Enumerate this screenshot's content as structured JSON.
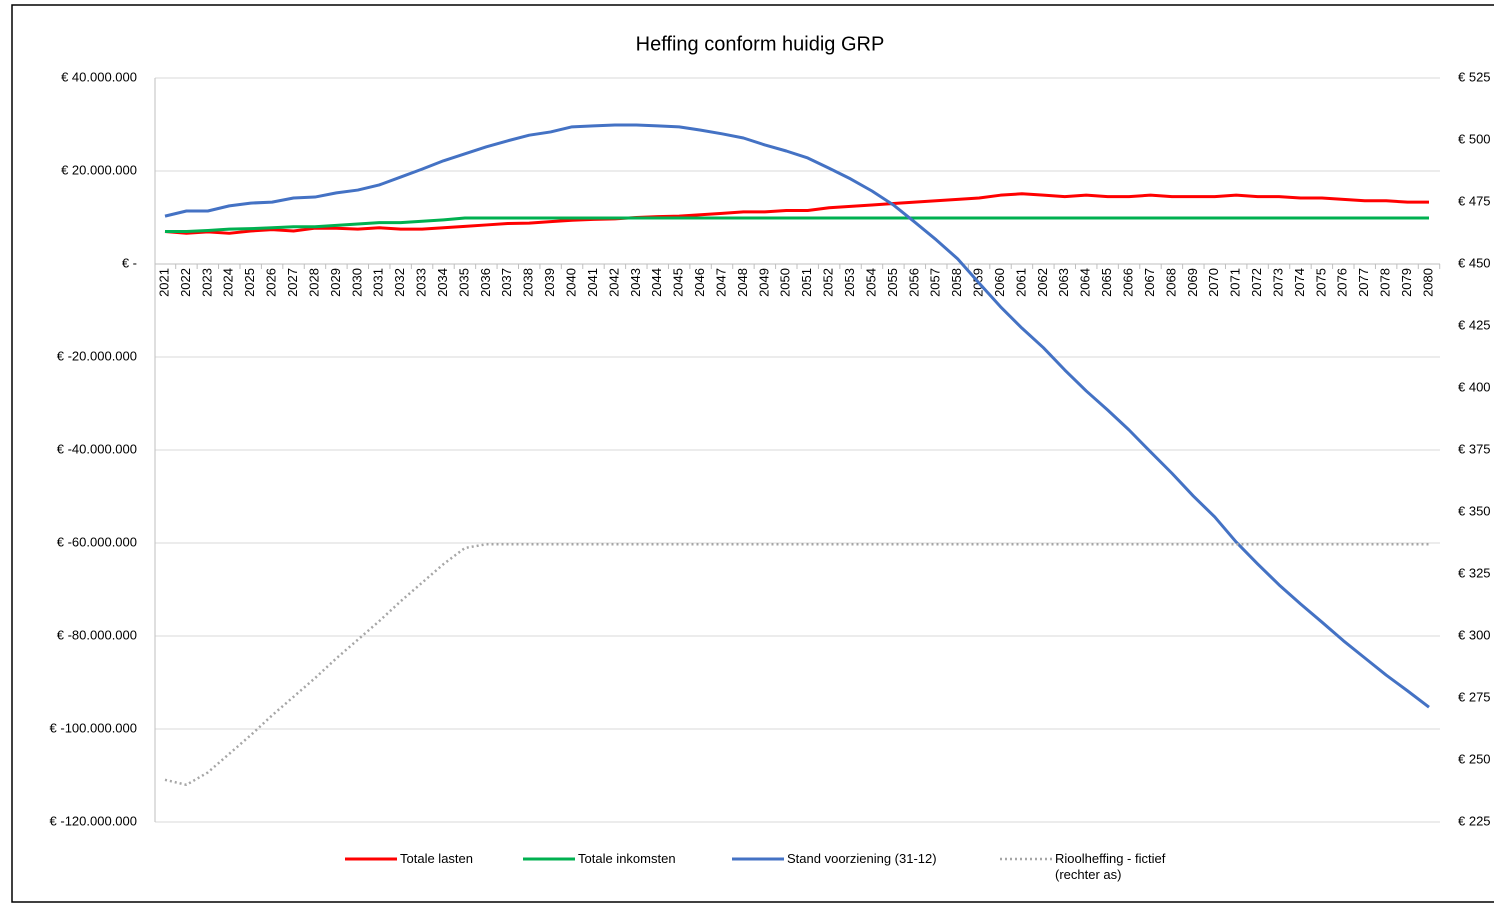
{
  "chart_data": {
    "type": "line",
    "title": "Heffing conform huidig GRP",
    "categories": [
      "2021",
      "2022",
      "2023",
      "2024",
      "2025",
      "2026",
      "2027",
      "2028",
      "2029",
      "2030",
      "2031",
      "2032",
      "2033",
      "2034",
      "2035",
      "2036",
      "2037",
      "2038",
      "2039",
      "2040",
      "2041",
      "2042",
      "2043",
      "2044",
      "2045",
      "2046",
      "2047",
      "2048",
      "2049",
      "2050",
      "2051",
      "2052",
      "2053",
      "2054",
      "2055",
      "2056",
      "2057",
      "2058",
      "2059",
      "2060",
      "2061",
      "2062",
      "2063",
      "2064",
      "2065",
      "2066",
      "2067",
      "2068",
      "2069",
      "2070",
      "2071",
      "2072",
      "2073",
      "2074",
      "2075",
      "2076",
      "2077",
      "2078",
      "2079",
      "2080"
    ],
    "ylim": [
      -120000000,
      40000000
    ],
    "yticks": [
      {
        "value": -120000000,
        "label": "€ -120.000.000"
      },
      {
        "value": -100000000,
        "label": "€ -100.000.000"
      },
      {
        "value": -80000000,
        "label": "€ -80.000.000"
      },
      {
        "value": -60000000,
        "label": "€ -60.000.000"
      },
      {
        "value": -40000000,
        "label": "€ -40.000.000"
      },
      {
        "value": -20000000,
        "label": "€ -20.000.000"
      },
      {
        "value": 0,
        "label": "€ -"
      },
      {
        "value": 20000000,
        "label": "€ 20.000.000"
      },
      {
        "value": 40000000,
        "label": "€ 40.000.000"
      }
    ],
    "y2lim": [
      225,
      525
    ],
    "y2ticks": [
      {
        "value": 225,
        "label": "€ 225"
      },
      {
        "value": 250,
        "label": "€ 250"
      },
      {
        "value": 275,
        "label": "€ 275"
      },
      {
        "value": 300,
        "label": "€ 300"
      },
      {
        "value": 325,
        "label": "€ 325"
      },
      {
        "value": 350,
        "label": "€ 350"
      },
      {
        "value": 375,
        "label": "€ 375"
      },
      {
        "value": 400,
        "label": "€ 400"
      },
      {
        "value": 425,
        "label": "€ 425"
      },
      {
        "value": 450,
        "label": "€ 450"
      },
      {
        "value": 475,
        "label": "€ 475"
      },
      {
        "value": 500,
        "label": "€ 500"
      },
      {
        "value": 525,
        "label": "€ 525"
      }
    ],
    "grid": true,
    "legend": "bottom",
    "series": [
      {
        "name": "Totale lasten",
        "color": "#ff0000",
        "values": [
          7000000,
          6600000,
          6900000,
          6600000,
          7100000,
          7400000,
          7100000,
          7700000,
          7700000,
          7500000,
          7800000,
          7500000,
          7500000,
          7800000,
          8100000,
          8400000,
          8700000,
          8800000,
          9100000,
          9400000,
          9600000,
          9700000,
          10000000,
          10200000,
          10300000,
          10600000,
          10900000,
          11200000,
          11200000,
          11500000,
          11500000,
          12100000,
          12400000,
          12700000,
          13000000,
          13300000,
          13600000,
          13900000,
          14200000,
          14800000,
          15100000,
          14800000,
          14500000,
          14800000,
          14500000,
          14500000,
          14800000,
          14500000,
          14500000,
          14500000,
          14800000,
          14500000,
          14500000,
          14200000,
          14200000,
          13900000,
          13600000,
          13600000,
          13300000,
          13300000
        ]
      },
      {
        "name": "Totale inkomsten",
        "color": "#00b050",
        "values": [
          7000000,
          7000000,
          7200000,
          7500000,
          7600000,
          7800000,
          8000000,
          8000000,
          8300000,
          8600000,
          8900000,
          8900000,
          9200000,
          9500000,
          9900000,
          9900000,
          9900000,
          9900000,
          9900000,
          9900000,
          9900000,
          9900000,
          9900000,
          9900000,
          9900000,
          9900000,
          9900000,
          9900000,
          9900000,
          9900000,
          9900000,
          9900000,
          9900000,
          9900000,
          9900000,
          9900000,
          9900000,
          9900000,
          9900000,
          9900000,
          9900000,
          9900000,
          9900000,
          9900000,
          9900000,
          9900000,
          9900000,
          9900000,
          9900000,
          9900000,
          9900000,
          9900000,
          9900000,
          9900000,
          9900000,
          9900000,
          9900000,
          9900000,
          9900000,
          9900000
        ]
      },
      {
        "name": "Stand voorziening (31-12)",
        "color": "#4472c4",
        "values": [
          10300000,
          11400000,
          11400000,
          12500000,
          13100000,
          13300000,
          14200000,
          14400000,
          15300000,
          15900000,
          17000000,
          18700000,
          20400000,
          22200000,
          23700000,
          25200000,
          26500000,
          27700000,
          28400000,
          29500000,
          29700000,
          29900000,
          29900000,
          29700000,
          29500000,
          28800000,
          28000000,
          27100000,
          25600000,
          24300000,
          22800000,
          20600000,
          18300000,
          15700000,
          12700000,
          9000000,
          5200000,
          1100000,
          -4100000,
          -9200000,
          -13800000,
          -18000000,
          -22800000,
          -27300000,
          -31400000,
          -35700000,
          -40400000,
          -45000000,
          -49900000,
          -54400000,
          -59800000,
          -64500000,
          -69000000,
          -73100000,
          -77000000,
          -81000000,
          -84700000,
          -88400000,
          -91800000,
          -95300000
        ]
      },
      {
        "name": "Rioolheffing - fictief (rechter as)",
        "color": "#a6a6a6",
        "axis": "y2",
        "dashed": true,
        "values": [
          242,
          240,
          245,
          252.5,
          260,
          268,
          275.5,
          283,
          291,
          298.5,
          306,
          314,
          321.5,
          329,
          335.5,
          337,
          337,
          337,
          337,
          337,
          337,
          337,
          337,
          337,
          337,
          337,
          337,
          337,
          337,
          337,
          337,
          337,
          337,
          337,
          337,
          337,
          337,
          337,
          337,
          337,
          337,
          337,
          337,
          337,
          337,
          337,
          337,
          337,
          337,
          337,
          337,
          337,
          337,
          337,
          337,
          337,
          337,
          337,
          337,
          337
        ]
      }
    ]
  }
}
